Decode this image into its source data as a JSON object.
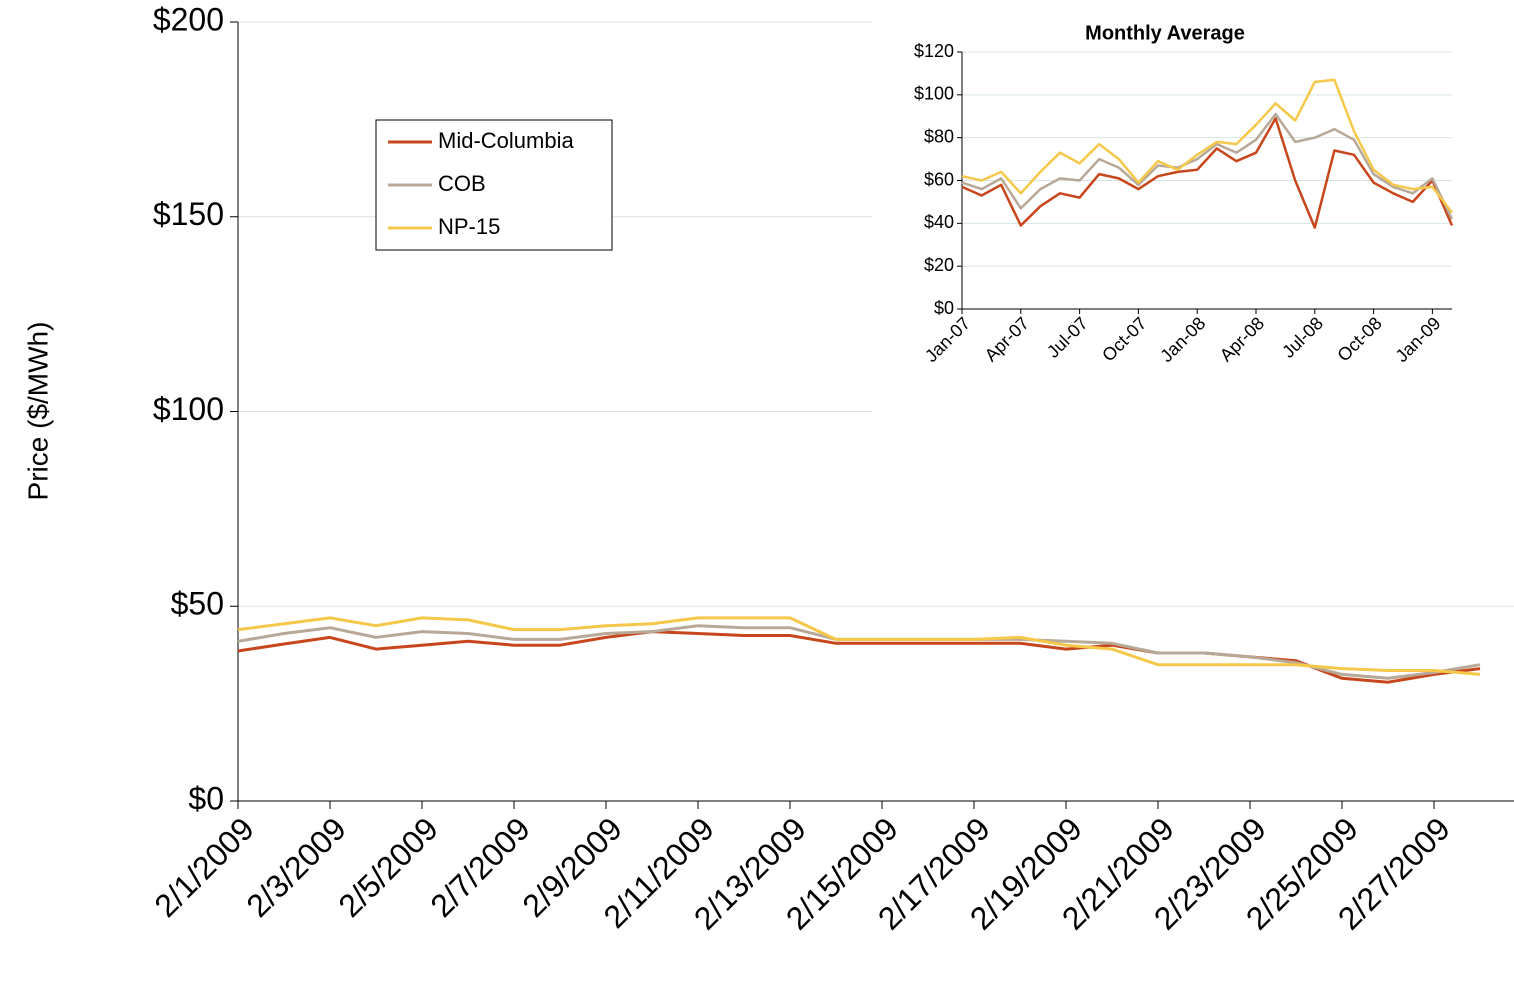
{
  "chart_data": [
    {
      "type": "line",
      "ylabel": "Price ($/MWh)",
      "categories": [
        "2/1/2009",
        null,
        "2/3/2009",
        null,
        "2/5/2009",
        null,
        "2/7/2009",
        null,
        "2/9/2009",
        null,
        "2/11/2009",
        null,
        "2/13/2009",
        null,
        "2/15/2009",
        null,
        "2/17/2009",
        null,
        "2/19/2009",
        null,
        "2/21/2009",
        null,
        "2/23/2009",
        null,
        "2/25/2009",
        null,
        "2/27/2009",
        null
      ],
      "series": [
        {
          "name": "Mid-Columbia",
          "color": "#c8461c",
          "values": [
            38.5,
            40.3,
            42,
            39,
            40,
            41,
            40,
            40,
            42,
            43.5,
            43,
            42.5,
            42.5,
            40.5,
            40.5,
            40.5,
            40.5,
            40.5,
            39,
            40,
            38,
            38,
            37,
            36,
            31.5,
            30.5,
            32.5,
            34
          ]
        },
        {
          "name": "COB",
          "color": "#b8a898",
          "values": [
            41,
            43,
            44.5,
            42,
            43.5,
            43,
            41.5,
            41.5,
            43,
            43.5,
            45,
            44.5,
            44.5,
            41.5,
            41.5,
            41.5,
            41.5,
            41.5,
            41,
            40.5,
            38,
            38,
            37,
            35.5,
            32.5,
            31.5,
            33,
            35
          ]
        },
        {
          "name": "NP-15",
          "color": "#f5c84a",
          "values": [
            44,
            45.5,
            47,
            45,
            47,
            46.5,
            44,
            44,
            45,
            45.5,
            47,
            47,
            47,
            41.5,
            41.5,
            41.5,
            41.5,
            42,
            40,
            39,
            35,
            35,
            35,
            35,
            34,
            33.5,
            33.5,
            32.5
          ]
        }
      ],
      "ylim": [
        0,
        200
      ],
      "yticks": [
        {
          "value": 0,
          "label": "$0"
        },
        {
          "value": 50,
          "label": "$50"
        },
        {
          "value": 100,
          "label": "$100"
        },
        {
          "value": 150,
          "label": "$150"
        },
        {
          "value": 200,
          "label": "$200"
        }
      ],
      "grid": true
    },
    {
      "type": "line",
      "title": "Monthly Average",
      "categories": [
        "Jan-07",
        null,
        null,
        "Apr-07",
        null,
        null,
        "Jul-07",
        null,
        null,
        "Oct-07",
        null,
        null,
        "Jan-08",
        null,
        null,
        "Apr-08",
        null,
        null,
        "Jul-08",
        null,
        null,
        "Oct-08",
        null,
        null,
        "Jan-09",
        null
      ],
      "series": [
        {
          "color": "#c8461c",
          "values": [
            57,
            53,
            58,
            39,
            48,
            54,
            52,
            63,
            61,
            56,
            62,
            64,
            65,
            75,
            69,
            73,
            89,
            60,
            38,
            74,
            72,
            59,
            54,
            50,
            60,
            39
          ]
        },
        {
          "color": "#b8a898",
          "values": [
            59,
            56,
            61,
            47,
            56,
            61,
            60,
            70,
            66,
            58,
            67,
            66,
            70,
            77,
            73,
            79,
            91,
            78,
            80,
            84,
            79,
            63,
            57,
            54,
            61,
            42
          ]
        },
        {
          "color": "#f5c84a",
          "values": [
            62,
            60,
            64,
            54,
            64,
            73,
            68,
            77,
            70,
            59,
            69,
            65,
            72,
            78,
            77,
            86,
            96,
            88,
            106,
            107,
            83,
            65,
            58,
            56,
            57,
            45
          ]
        }
      ],
      "ylim": [
        0,
        120
      ],
      "yticks": [
        {
          "value": 0,
          "label": "$0"
        },
        {
          "value": 20,
          "label": "$20"
        },
        {
          "value": 40,
          "label": "$40"
        },
        {
          "value": 60,
          "label": "$60"
        },
        {
          "value": 80,
          "label": "$80"
        },
        {
          "value": 100,
          "label": "$100"
        },
        {
          "value": 120,
          "label": "$120"
        }
      ],
      "grid": true
    }
  ]
}
